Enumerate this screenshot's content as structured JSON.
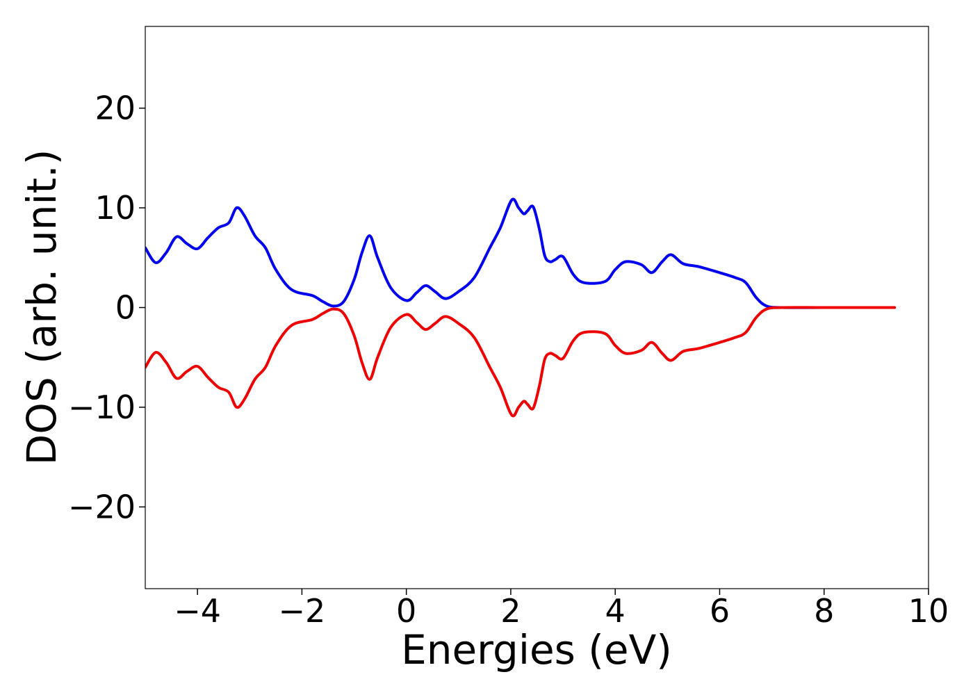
{
  "chart_data": {
    "type": "line",
    "title": "",
    "xlabel": "Energies (eV)",
    "ylabel": "DOS (arb. unit.)",
    "xlim": [
      -5,
      10
    ],
    "ylim": [
      -28.2,
      28.2
    ],
    "xticks": [
      -4,
      -2,
      0,
      2,
      4,
      6,
      8,
      10
    ],
    "xtick_labels": [
      "−4",
      "−2",
      "0",
      "2",
      "4",
      "6",
      "8",
      "10"
    ],
    "yticks": [
      -20,
      -10,
      0,
      10,
      20
    ],
    "ytick_labels": [
      "−20",
      "−10",
      "0",
      "10",
      "20"
    ],
    "grid": false,
    "legend": "none",
    "x": [
      -5.0,
      -4.8,
      -4.6,
      -4.4,
      -4.2,
      -4.0,
      -3.8,
      -3.6,
      -3.4,
      -3.25,
      -3.1,
      -2.9,
      -2.7,
      -2.5,
      -2.2,
      -1.8,
      -1.6,
      -1.4,
      -1.2,
      -1.0,
      -0.85,
      -0.7,
      -0.55,
      -0.3,
      0.0,
      0.2,
      0.37,
      0.55,
      0.75,
      1.0,
      1.3,
      1.6,
      1.8,
      2.02,
      2.15,
      2.25,
      2.32,
      2.43,
      2.55,
      2.65,
      2.75,
      2.85,
      3.0,
      3.2,
      3.4,
      3.8,
      4.0,
      4.2,
      4.5,
      4.7,
      4.9,
      5.07,
      5.3,
      5.6,
      6.0,
      6.3,
      6.5,
      6.7,
      6.9,
      7.2,
      8.0,
      9.0,
      9.35
    ],
    "series": [
      {
        "color": "#0000ee",
        "values": [
          6.0,
          4.5,
          5.5,
          7.1,
          6.4,
          5.9,
          7.0,
          8.0,
          8.5,
          10.0,
          9.2,
          7.2,
          6.0,
          3.8,
          1.8,
          1.2,
          0.6,
          0.15,
          0.6,
          2.8,
          5.5,
          7.2,
          5.0,
          2.0,
          0.7,
          1.5,
          2.2,
          1.6,
          0.9,
          1.6,
          3.0,
          6.0,
          8.0,
          10.8,
          10.0,
          9.4,
          9.7,
          10.1,
          7.8,
          5.2,
          4.6,
          4.8,
          5.1,
          3.3,
          2.5,
          2.6,
          3.8,
          4.6,
          4.3,
          3.5,
          4.6,
          5.3,
          4.4,
          4.1,
          3.5,
          3.0,
          2.5,
          1.0,
          0.15,
          0.0,
          0.0,
          0.0,
          0.0
        ]
      },
      {
        "color": "#ee0000",
        "values": [
          -6.0,
          -4.5,
          -5.5,
          -7.1,
          -6.4,
          -5.9,
          -7.0,
          -8.0,
          -8.5,
          -10.0,
          -9.2,
          -7.2,
          -6.0,
          -3.8,
          -1.8,
          -1.2,
          -0.6,
          -0.15,
          -0.6,
          -2.8,
          -5.5,
          -7.2,
          -5.0,
          -2.0,
          -0.7,
          -1.5,
          -2.2,
          -1.6,
          -0.9,
          -1.6,
          -3.0,
          -6.0,
          -8.0,
          -10.8,
          -10.0,
          -9.4,
          -9.7,
          -10.1,
          -7.8,
          -5.2,
          -4.6,
          -4.8,
          -5.1,
          -3.3,
          -2.5,
          -2.6,
          -3.8,
          -4.6,
          -4.3,
          -3.5,
          -4.6,
          -5.3,
          -4.4,
          -4.1,
          -3.5,
          -3.0,
          -2.5,
          -1.0,
          -0.15,
          0.0,
          0.0,
          0.0,
          0.0
        ]
      }
    ]
  }
}
